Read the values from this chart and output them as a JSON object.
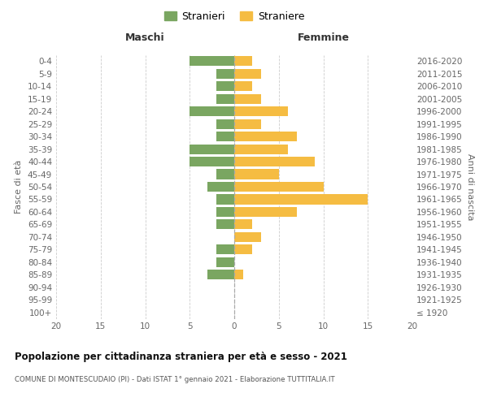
{
  "age_groups": [
    "100+",
    "95-99",
    "90-94",
    "85-89",
    "80-84",
    "75-79",
    "70-74",
    "65-69",
    "60-64",
    "55-59",
    "50-54",
    "45-49",
    "40-44",
    "35-39",
    "30-34",
    "25-29",
    "20-24",
    "15-19",
    "10-14",
    "5-9",
    "0-4"
  ],
  "birth_years": [
    "≤ 1920",
    "1921-1925",
    "1926-1930",
    "1931-1935",
    "1936-1940",
    "1941-1945",
    "1946-1950",
    "1951-1955",
    "1956-1960",
    "1961-1965",
    "1966-1970",
    "1971-1975",
    "1976-1980",
    "1981-1985",
    "1986-1990",
    "1991-1995",
    "1996-2000",
    "2001-2005",
    "2006-2010",
    "2011-2015",
    "2016-2020"
  ],
  "males": [
    0,
    0,
    0,
    3,
    2,
    2,
    0,
    2,
    2,
    2,
    3,
    2,
    5,
    5,
    2,
    2,
    5,
    2,
    2,
    2,
    5
  ],
  "females": [
    0,
    0,
    0,
    1,
    0,
    2,
    3,
    2,
    7,
    15,
    10,
    5,
    9,
    6,
    7,
    3,
    6,
    3,
    2,
    3,
    2
  ],
  "male_color": "#7aa661",
  "female_color": "#f5bc42",
  "title": "Popolazione per cittadinanza straniera per età e sesso - 2021",
  "subtitle": "COMUNE DI MONTESCUDAIO (PI) - Dati ISTAT 1° gennaio 2021 - Elaborazione TUTTITALIA.IT",
  "ylabel_left": "Fasce di età",
  "ylabel_right": "Anni di nascita",
  "header_left": "Maschi",
  "header_right": "Femmine",
  "legend_male": "Stranieri",
  "legend_female": "Straniere",
  "xlim": 20,
  "bg_color": "#ffffff",
  "grid_color": "#cccccc"
}
